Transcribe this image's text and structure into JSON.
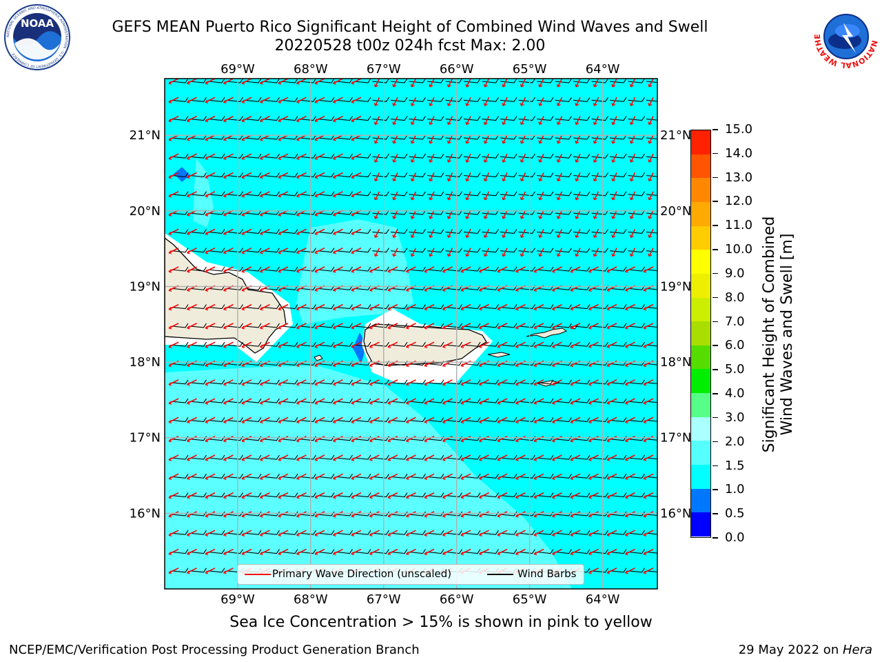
{
  "header": {
    "title_line1": "GEFS MEAN Puerto Rico Significant Height of Combined Wind Waves and Swell",
    "title_line2": "20220528 t00z 024h fcst   Max: 2.00"
  },
  "logos": {
    "left": {
      "icon": "noaa-logo-icon",
      "text": "NOAA",
      "ring_text": "NATIONAL OCEANIC AND ATMOSPHERIC ADMINISTRATION · U.S. DEPARTMENT OF COMMERCE"
    },
    "right": {
      "icon": "nws-logo-icon",
      "ring_text": "NATIONAL WEATHER SERVICE"
    }
  },
  "map": {
    "lon_labels": [
      "69°W",
      "68°W",
      "67°W",
      "66°W",
      "65°W",
      "64°W"
    ],
    "lat_labels": [
      "21°N",
      "20°N",
      "19°N",
      "18°N",
      "17°N",
      "16°N"
    ],
    "lon_range": [
      -70.0,
      -63.25
    ],
    "lat_range": [
      15.0,
      21.75
    ],
    "ocean_color": "#00ffff",
    "land_color": "#f0ecdc",
    "light_band_color": "#66ffff",
    "wave_arrow_color": "#ff0000",
    "barb_color": "#000000",
    "grid": true
  },
  "legend": {
    "items": [
      {
        "label": "Primary Wave Direction (unscaled)",
        "color": "#ff0000"
      },
      {
        "label": "Wind Barbs",
        "color": "#000000"
      }
    ]
  },
  "colorbar": {
    "title_line1": "Significant Height of Combined",
    "title_line2": "Wind Waves and Swell [m]",
    "ticks": [
      "0.0",
      "0.5",
      "1.0",
      "1.5",
      "2.0",
      "3.0",
      "4.0",
      "5.0",
      "6.0",
      "7.0",
      "8.0",
      "9.0",
      "10.0",
      "11.0",
      "12.0",
      "13.0",
      "14.0",
      "15.0"
    ],
    "colors": [
      "#0000ff",
      "#0077ff",
      "#00ffff",
      "#55ffff",
      "#aaffff",
      "#55ff88",
      "#00ee00",
      "#55dd00",
      "#aadd00",
      "#ccee00",
      "#eeee00",
      "#ffff00",
      "#ffcc00",
      "#ffaa00",
      "#ff8800",
      "#ff5500",
      "#ff2200"
    ]
  },
  "footer": {
    "sea_ice_note": "Sea Ice Concentration > 15% is shown in pink to yellow",
    "credit": "NCEP/EMC/Verification Post Processing Product Generation Branch",
    "date_prefix": "29 May 2022 on ",
    "machine": "Hera"
  }
}
